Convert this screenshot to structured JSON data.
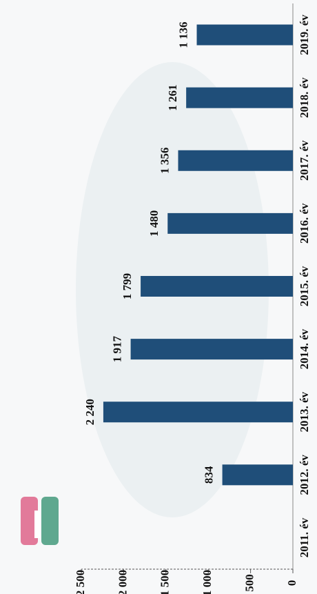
{
  "chart_data": {
    "type": "bar",
    "orientation": "horizontal",
    "categories": [
      "2011. év",
      "2012. év",
      "2013. év",
      "2014. év",
      "2015. év",
      "2016. év",
      "2017. év",
      "2018. év",
      "2019. év"
    ],
    "values": [
      null,
      834,
      2240,
      1917,
      1799,
      1480,
      1356,
      1261,
      1136
    ],
    "value_labels": [
      null,
      "834",
      "2 240",
      "1 917",
      "1 799",
      "1 480",
      "1 356",
      "1 261",
      "1 136"
    ],
    "color": "#1f4e79",
    "ylim": [
      0,
      2500
    ],
    "yticks": [
      0,
      500,
      {
        "value": 1000,
        "label": "1 000"
      },
      {
        "value": 1500,
        "label": "1 500"
      },
      {
        "value": 2000,
        "label": "2 000"
      },
      {
        "value": 2500,
        "label": "2 500"
      }
    ]
  }
}
